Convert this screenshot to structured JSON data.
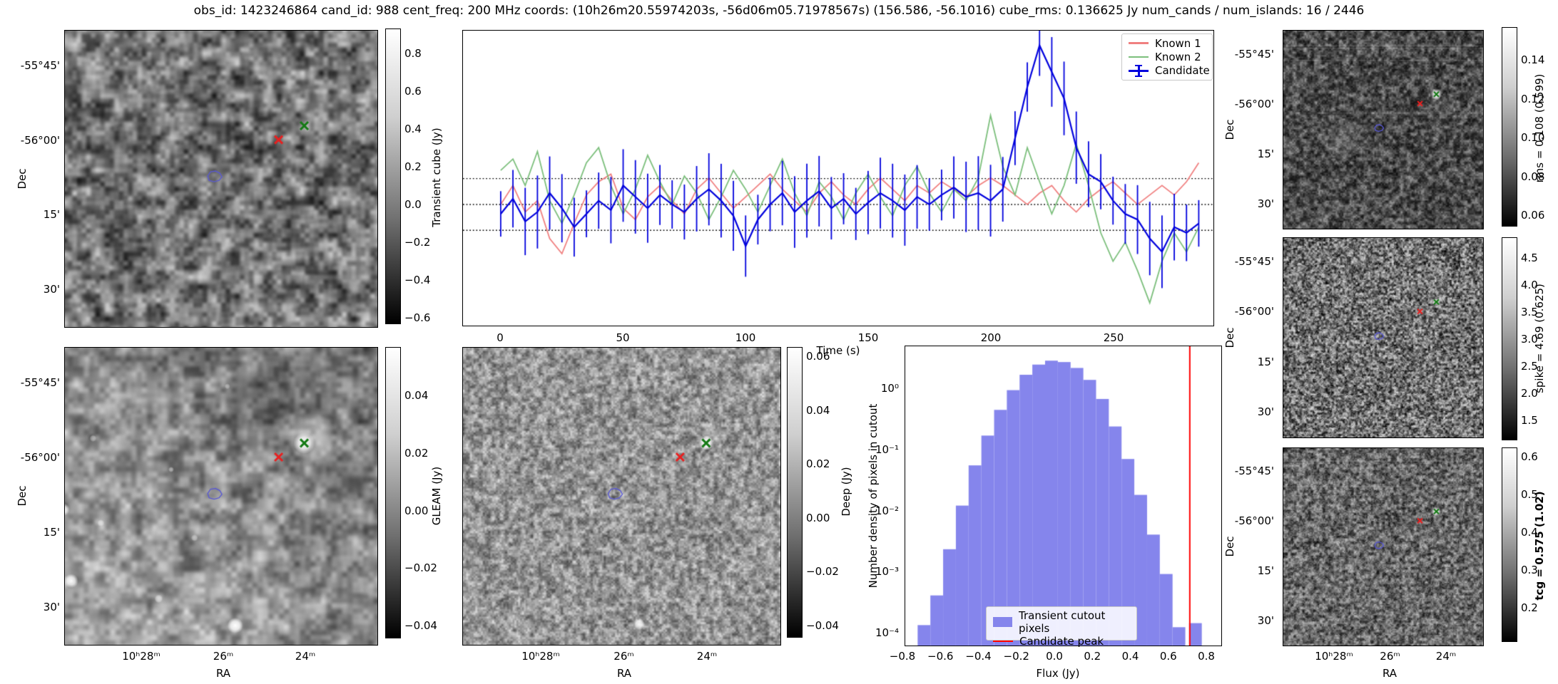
{
  "title": "obs_id: 1423246864 cand_id: 988 cent_freq: 200 MHz coords: (10h26m20.55974203s, -56d06m05.71978567s) (156.586, -56.1016) cube_rms: 0.136625 Jy num_cands / num_islands: 16 / 2446",
  "axes": {
    "dec_label": "Dec",
    "ra_label": "RA",
    "dec_ticks": [
      "-55°45'",
      "-56°00'",
      "15'",
      "30'"
    ],
    "ra_ticks": [
      "10ʰ28ᵐ",
      "26ᵐ",
      "24ᵐ"
    ]
  },
  "markers": {
    "known1_cross": {
      "rx": 0.684,
      "ry": 0.368,
      "color": "#e82020"
    },
    "known2_cross": {
      "rx": 0.766,
      "ry": 0.321,
      "color": "#157a15"
    },
    "candidate_contour": {
      "rx": 0.482,
      "ry": 0.493,
      "color": "#5a5ad2"
    }
  },
  "panels": {
    "transient": {
      "colorbar_label": "Transient cube (Jy)",
      "colorbar_ticks": [
        "0.8",
        "0.6",
        "0.4",
        "0.2",
        "0.0",
        "−0.2",
        "−0.4",
        "−0.6"
      ],
      "sources": []
    },
    "gleam": {
      "colorbar_label": "GLEAM (Jy)",
      "colorbar_ticks": [
        "0.04",
        "0.02",
        "0.00",
        "−0.02",
        "−0.04"
      ],
      "sources": [
        [
          0.62,
          0.2,
          60,
          -0.28
        ],
        [
          0.87,
          0.46,
          50,
          -0.2
        ],
        [
          0.79,
          0.3,
          34,
          0.3
        ],
        [
          0.766,
          0.321,
          15,
          1
        ],
        [
          -0.005,
          0.545,
          9,
          0.95
        ],
        [
          0.02,
          0.785,
          10,
          0.95
        ],
        [
          0.545,
          0.935,
          11,
          1
        ],
        [
          0.3,
          0.845,
          6,
          0.6
        ],
        [
          0.115,
          0.59,
          5,
          0.55
        ],
        [
          0.415,
          0.64,
          5,
          0.5
        ],
        [
          0.09,
          0.305,
          5,
          0.5
        ],
        [
          0.34,
          0.41,
          4,
          0.5
        ],
        [
          0.52,
          0.13,
          4,
          0.4
        ]
      ]
    },
    "deep": {
      "colorbar_label": "Deep (Jy)",
      "colorbar_ticks": [
        "0.06",
        "0.04",
        "0.02",
        "0.00",
        "−0.02",
        "−0.04"
      ],
      "sources": [
        [
          0.79,
          0.3,
          18,
          0.35
        ],
        [
          0.766,
          0.321,
          10,
          1
        ],
        [
          0.4,
          0.16,
          4,
          0.5
        ],
        [
          0.07,
          0.52,
          4,
          0.45
        ],
        [
          0.555,
          0.93,
          8,
          0.9
        ],
        [
          0.63,
          0.3,
          5,
          0.6
        ]
      ]
    },
    "rms": {
      "colorbar_label": "rms = 0.108 (0.599)",
      "colorbar_ticks": [
        "0.14",
        "0.12",
        "0.10",
        "0.08",
        "0.06"
      ],
      "sources": [
        [
          0.766,
          0.321,
          8,
          0.95
        ],
        [
          0.3,
          0.55,
          30,
          0.12
        ]
      ]
    },
    "spike": {
      "colorbar_label": "spike = 4.69 (0.625)",
      "colorbar_ticks": [
        "4.5",
        "4.0",
        "3.5",
        "3.0",
        "2.5",
        "2.0",
        "1.5"
      ],
      "sources": [
        [
          0.766,
          0.321,
          6,
          0.8
        ]
      ]
    },
    "tcg": {
      "colorbar_label": "tcg = 0.575 (1.02)",
      "colorbar_ticks": [
        "0.6",
        "0.5",
        "0.4",
        "0.3",
        "0.2"
      ],
      "sources": [
        [
          0.766,
          0.321,
          7,
          0.9
        ],
        [
          0.25,
          0.7,
          20,
          0.12
        ]
      ]
    }
  },
  "chart_data": [
    {
      "type": "line",
      "title": "",
      "xlabel": "Time (s)",
      "ylabel": "",
      "xlim": [
        -15.4,
        291
      ],
      "ylim": [
        -0.64,
        0.918
      ],
      "xticks": [
        "0",
        "50",
        "100",
        "150",
        "200",
        "250"
      ],
      "xtick_values": [
        0,
        50,
        100,
        150,
        200,
        250
      ],
      "hlines": [
        0.136625,
        0.0,
        -0.136625
      ],
      "legend_position": "upper right",
      "x": [
        0,
        5,
        10,
        15,
        20,
        25,
        30,
        35,
        40,
        45,
        50,
        55,
        60,
        65,
        70,
        75,
        80,
        85,
        90,
        95,
        100,
        105,
        110,
        115,
        120,
        125,
        130,
        135,
        140,
        145,
        150,
        155,
        160,
        165,
        170,
        175,
        180,
        185,
        190,
        195,
        200,
        205,
        210,
        215,
        220,
        225,
        230,
        235,
        240,
        245,
        250,
        255,
        260,
        265,
        270,
        275,
        280,
        285
      ],
      "series": [
        {
          "name": "Known 1",
          "color": "#f08080",
          "values": [
            0.0,
            0.1,
            -0.04,
            0.02,
            -0.18,
            -0.26,
            -0.1,
            0.05,
            0.12,
            0.16,
            -0.02,
            -0.08,
            0.04,
            0.1,
            0.02,
            -0.05,
            0.08,
            0.14,
            0.06,
            -0.02,
            0.04,
            0.1,
            0.16,
            0.08,
            0.02,
            -0.04,
            0.06,
            0.12,
            0.05,
            0.0,
            0.08,
            0.14,
            0.08,
            0.02,
            0.1,
            0.06,
            0.12,
            0.08,
            0.04,
            0.1,
            0.14,
            0.1,
            0.05,
            0.0,
            0.06,
            0.1,
            0.02,
            -0.04,
            0.03,
            0.08,
            0.12,
            0.06,
            0.0,
            0.05,
            0.1,
            0.05,
            0.12,
            0.22
          ]
        },
        {
          "name": "Known 2",
          "color": "#7cbf7c",
          "values": [
            0.18,
            0.24,
            0.1,
            0.28,
            0.02,
            -0.1,
            0.05,
            0.22,
            0.3,
            0.1,
            -0.05,
            0.08,
            0.26,
            0.12,
            0.0,
            0.15,
            0.06,
            -0.08,
            0.04,
            0.18,
            0.08,
            -0.04,
            0.1,
            0.24,
            0.06,
            -0.06,
            0.12,
            0.04,
            -0.08,
            0.06,
            0.16,
            0.04,
            -0.06,
            0.1,
            0.2,
            0.06,
            -0.04,
            0.08,
            0.02,
            0.14,
            0.47,
            0.2,
            0.05,
            0.3,
            0.12,
            -0.05,
            0.1,
            0.32,
            0.1,
            -0.15,
            -0.3,
            -0.2,
            -0.35,
            -0.52,
            -0.3,
            -0.15,
            -0.25,
            -0.12
          ]
        },
        {
          "name": "Candidate",
          "color": "#0000dd",
          "yerr": 0.15,
          "values": [
            -0.05,
            0.03,
            -0.09,
            -0.04,
            0.06,
            -0.02,
            -0.12,
            -0.05,
            0.02,
            -0.03,
            0.1,
            0.04,
            -0.02,
            0.05,
            0.0,
            -0.04,
            0.03,
            0.08,
            0.02,
            -0.06,
            -0.22,
            -0.08,
            0.0,
            0.06,
            -0.04,
            0.02,
            0.07,
            -0.02,
            0.03,
            -0.05,
            0.01,
            0.06,
            0.02,
            -0.03,
            0.04,
            0.0,
            0.05,
            0.09,
            0.04,
            0.06,
            0.02,
            0.08,
            0.35,
            0.62,
            0.84,
            0.7,
            0.56,
            0.3,
            0.16,
            0.12,
            0.02,
            -0.05,
            -0.08,
            -0.18,
            -0.25,
            -0.12,
            -0.15,
            -0.1
          ]
        }
      ]
    },
    {
      "type": "bar",
      "title": "",
      "xlabel": "Flux (Jy)",
      "ylabel": "Number density of pixels in cutout",
      "xlim": [
        -0.803,
        0.883
      ],
      "yscale": "log",
      "ylim": [
        6e-05,
        5.0
      ],
      "xticks": [
        "−0.8",
        "−0.6",
        "−0.4",
        "−0.2",
        "0.0",
        "0.2",
        "0.4",
        "0.6",
        "0.8"
      ],
      "yticks": [
        "10⁰",
        "10⁻¹",
        "10⁻²",
        "10⁻³",
        "10⁻⁴"
      ],
      "bar_color": "#8585ec",
      "peak_color": "#ff0000",
      "bin_width": 0.068,
      "centers": [
        -0.703,
        -0.635,
        -0.567,
        -0.499,
        -0.431,
        -0.363,
        -0.295,
        -0.227,
        -0.159,
        -0.091,
        -0.023,
        0.045,
        0.113,
        0.181,
        0.249,
        0.317,
        0.385,
        0.453,
        0.521,
        0.589,
        0.657,
        0.745
      ],
      "densities": [
        0.00013,
        0.0004,
        0.0023,
        0.012,
        0.055,
        0.17,
        0.45,
        0.95,
        1.7,
        2.5,
        2.9,
        2.75,
        2.2,
        1.4,
        0.68,
        0.24,
        0.07,
        0.018,
        0.004,
        0.0009,
        0.00012,
        0.00014
      ],
      "candidate_peak": 0.715,
      "legend": [
        "Transient cutout pixels",
        "Candidate peak"
      ],
      "legend_position": "lower right"
    }
  ]
}
